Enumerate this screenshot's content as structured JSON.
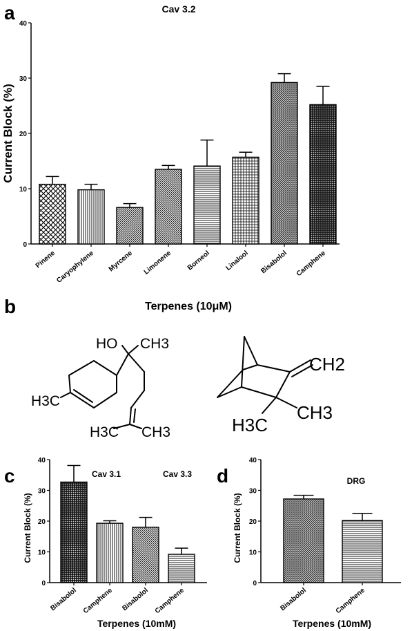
{
  "panels": {
    "a": "a",
    "b": "b",
    "c": "c",
    "d": "d"
  },
  "chart_data": [
    {
      "id": "a",
      "type": "bar",
      "title": "Cav 3.2",
      "xlabel": "Terpenes (10μM)",
      "ylabel": "Current Block (%)",
      "ylim": [
        0,
        40
      ],
      "yticks": [
        0,
        10,
        20,
        30,
        40
      ],
      "categories": [
        "Pinene",
        "Caryophylene",
        "Myrcene",
        "Limonene",
        "Borneol",
        "Linalool",
        "Bisabolol",
        "Camphene"
      ],
      "values": [
        10.8,
        9.8,
        6.6,
        13.5,
        14.1,
        15.7,
        29.2,
        25.2
      ],
      "errors": [
        1.4,
        1.0,
        0.7,
        0.7,
        4.7,
        0.9,
        1.6,
        3.3
      ],
      "patterns": [
        "crosshatch",
        "vertical",
        "diag-right",
        "diag-left",
        "horizontal",
        "grid",
        "dots",
        "dense"
      ]
    },
    {
      "id": "c",
      "type": "bar",
      "title": "",
      "group_labels": [
        "Cav 3.1",
        "Cav 3.3"
      ],
      "xlabel": "Terpenes (10mM)",
      "ylabel": "Current Block (%)",
      "ylim": [
        0,
        40
      ],
      "yticks": [
        0,
        10,
        20,
        30,
        40
      ],
      "categories": [
        "Bisabolol",
        "Camphene",
        "Bisabolol",
        "Camphene"
      ],
      "values": [
        32.7,
        19.3,
        18.0,
        9.2
      ],
      "errors": [
        5.4,
        0.8,
        3.2,
        2.0
      ],
      "patterns": [
        "dense",
        "vertical",
        "diag-left",
        "horizontal"
      ]
    },
    {
      "id": "d",
      "type": "bar",
      "title": "DRG",
      "xlabel": "Terpenes (10mM)",
      "ylabel": "Current Block (%)",
      "ylim": [
        0,
        40
      ],
      "yticks": [
        0,
        10,
        20,
        30,
        40
      ],
      "categories": [
        "Bisabolol",
        "Camphene"
      ],
      "values": [
        27.2,
        20.2
      ],
      "errors": [
        1.2,
        2.3
      ],
      "patterns": [
        "dots",
        "horizontal"
      ]
    }
  ],
  "structures": {
    "bisabolol": {
      "labels": [
        "HO",
        "CH3",
        "H3C",
        "H3C",
        "CH3"
      ]
    },
    "camphene": {
      "labels": [
        "CH2",
        "H3C",
        "CH3"
      ]
    }
  }
}
